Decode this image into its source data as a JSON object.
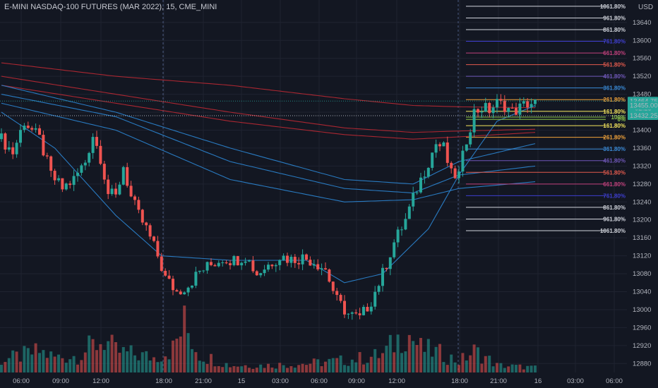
{
  "header": {
    "title": "E-MINI NASDAQ-100 FUTURES (MAR 2022), 15, CME_MINI",
    "currency": "USD"
  },
  "colors": {
    "background": "#131722",
    "up_candle": "#26a69a",
    "down_candle": "#ef5350",
    "grid": "#1f2330",
    "ma_red": "#b22833",
    "ma_blue": "#2a7fc9",
    "axis_text": "#b2b5be"
  },
  "price_tags": [
    {
      "value": "13464.75",
      "sub": "02:23",
      "color": "#26a69a"
    },
    {
      "value": "13455.00",
      "color": "#26a69a"
    },
    {
      "value": "13432.25",
      "color": "#26a69a"
    }
  ],
  "chart_data": {
    "type": "candlestick",
    "title": "E-MINI NASDAQ-100 FUTURES (MAR 2022), 15, CME_MINI",
    "interval": "15",
    "y_axis": {
      "unit": "USD",
      "ticks": [
        13640,
        13600,
        13560,
        13520,
        13480,
        13440,
        13400,
        13360,
        13320,
        13280,
        13240,
        13200,
        13160,
        13120,
        13080,
        13040,
        13000,
        12960,
        12920,
        12880
      ],
      "ylim": [
        12860,
        13690
      ]
    },
    "x_axis": {
      "ticks": [
        "06:00",
        "09:00",
        "12:00",
        "18:00",
        "21:00",
        "15",
        "03:00",
        "06:00",
        "09:00",
        "12:00",
        "18:00",
        "21:00",
        "16",
        "03:00",
        "06:00"
      ]
    },
    "price_path": [
      [
        0,
        13380
      ],
      [
        3,
        13350
      ],
      [
        6,
        13420
      ],
      [
        8,
        13400
      ],
      [
        10,
        13380
      ],
      [
        13,
        13300
      ],
      [
        16,
        13270
      ],
      [
        19,
        13290
      ],
      [
        22,
        13330
      ],
      [
        24,
        13390
      ],
      [
        26,
        13340
      ],
      [
        28,
        13260
      ],
      [
        30,
        13250
      ],
      [
        32,
        13320
      ],
      [
        34,
        13250
      ],
      [
        36,
        13210
      ],
      [
        38,
        13180
      ],
      [
        41,
        13120
      ],
      [
        43,
        13070
      ],
      [
        46,
        13040
      ],
      [
        49,
        13055
      ],
      [
        52,
        13085
      ],
      [
        55,
        13100
      ],
      [
        58,
        13115
      ],
      [
        61,
        13110
      ],
      [
        64,
        13120
      ],
      [
        67,
        13080
      ],
      [
        70,
        13100
      ],
      [
        73,
        13120
      ],
      [
        76,
        13112
      ],
      [
        79,
        13116
      ],
      [
        82,
        13108
      ],
      [
        85,
        13090
      ],
      [
        88,
        13020
      ],
      [
        91,
        12990
      ],
      [
        94,
        12980
      ],
      [
        97,
        13020
      ],
      [
        100,
        13080
      ],
      [
        103,
        13150
      ],
      [
        106,
        13200
      ],
      [
        109,
        13270
      ],
      [
        112,
        13330
      ],
      [
        114,
        13370
      ],
      [
        116,
        13360
      ],
      [
        118,
        13300
      ],
      [
        120,
        13300
      ],
      [
        122,
        13380
      ],
      [
        124,
        13440
      ],
      [
        126,
        13450
      ],
      [
        128,
        13445
      ],
      [
        130,
        13460
      ],
      [
        132,
        13455
      ],
      [
        134,
        13440
      ],
      [
        136,
        13450
      ],
      [
        138,
        13460
      ],
      [
        140,
        13460
      ]
    ],
    "moving_averages": [
      {
        "color": "#b22833",
        "values": [
          [
            0,
            13550
          ],
          [
            30,
            13520
          ],
          [
            60,
            13500
          ],
          [
            90,
            13470
          ],
          [
            108,
            13455
          ],
          [
            120,
            13452
          ],
          [
            140,
            13450
          ]
        ]
      },
      {
        "color": "#b22833",
        "values": [
          [
            0,
            13520
          ],
          [
            30,
            13480
          ],
          [
            60,
            13440
          ],
          [
            90,
            13405
          ],
          [
            108,
            13395
          ],
          [
            120,
            13398
          ],
          [
            140,
            13402
          ]
        ]
      },
      {
        "color": "#b22833",
        "values": [
          [
            0,
            13500
          ],
          [
            30,
            13460
          ],
          [
            60,
            13420
          ],
          [
            90,
            13390
          ],
          [
            108,
            13380
          ],
          [
            120,
            13385
          ],
          [
            140,
            13395
          ]
        ]
      },
      {
        "color": "#2a7fc9",
        "values": [
          [
            0,
            13500
          ],
          [
            30,
            13440
          ],
          [
            60,
            13360
          ],
          [
            90,
            13290
          ],
          [
            108,
            13280
          ],
          [
            120,
            13330
          ],
          [
            140,
            13370
          ]
        ]
      },
      {
        "color": "#2a7fc9",
        "values": [
          [
            0,
            13480
          ],
          [
            30,
            13430
          ],
          [
            60,
            13330
          ],
          [
            90,
            13270
          ],
          [
            108,
            13260
          ],
          [
            120,
            13300
          ],
          [
            140,
            13320
          ]
        ]
      },
      {
        "color": "#2a7fc9",
        "values": [
          [
            0,
            13460
          ],
          [
            30,
            13400
          ],
          [
            60,
            13290
          ],
          [
            90,
            13240
          ],
          [
            108,
            13245
          ],
          [
            120,
            13270
          ],
          [
            140,
            13285
          ]
        ]
      },
      {
        "color": "#2a7fc9",
        "values": [
          [
            0,
            13440
          ],
          [
            14,
            13360
          ],
          [
            30,
            13210
          ],
          [
            42,
            13120
          ],
          [
            60,
            13110
          ],
          [
            80,
            13110
          ],
          [
            90,
            13060
          ],
          [
            100,
            13080
          ],
          [
            112,
            13180
          ],
          [
            120,
            13300
          ],
          [
            130,
            13420
          ],
          [
            140,
            13455
          ]
        ]
      }
    ],
    "fibonacci": {
      "upper": [
        {
          "label": "1061.80%",
          "value": 13676,
          "color": "#d1d4dc"
        },
        {
          "label": "961.80%",
          "value": 13650,
          "color": "#d1d4dc"
        },
        {
          "label": "861.80%",
          "value": 13624,
          "color": "#d1d4dc"
        },
        {
          "label": "761.80%",
          "value": 13598,
          "color": "#3f3fd1"
        },
        {
          "label": "661.80%",
          "value": 13572,
          "color": "#c2417c"
        },
        {
          "label": "561.80%",
          "value": 13546,
          "color": "#e25a4d"
        },
        {
          "label": "461.80%",
          "value": 13520,
          "color": "#6f57b8"
        },
        {
          "label": "361.80%",
          "value": 13494,
          "color": "#3a8bd8"
        },
        {
          "label": "261.80%",
          "value": 13468,
          "color": "#f2a33a"
        },
        {
          "label": "161.80%",
          "value": 13442,
          "color": "#f5e55c"
        },
        {
          "label": "100%",
          "value": 13429,
          "color": "#8bc34a"
        },
        {
          "label": "0%",
          "value": 13424,
          "color": "#8bc34a"
        }
      ],
      "lower": [
        {
          "label": "161.80%",
          "value": 13410,
          "color": "#f5e55c"
        },
        {
          "label": "261.80%",
          "value": 13384,
          "color": "#f2a33a"
        },
        {
          "label": "361.80%",
          "value": 13358,
          "color": "#3a8bd8"
        },
        {
          "label": "461.80%",
          "value": 13332,
          "color": "#6f57b8"
        },
        {
          "label": "561.80%",
          "value": 13306,
          "color": "#e25a4d"
        },
        {
          "label": "661.80%",
          "value": 13280,
          "color": "#c2417c"
        },
        {
          "label": "761.80%",
          "value": 13254,
          "color": "#3f3fd1"
        },
        {
          "label": "861.80%",
          "value": 13228,
          "color": "#d1d4dc"
        },
        {
          "label": "961.80%",
          "value": 13202,
          "color": "#d1d4dc"
        },
        {
          "label": "1061.80%",
          "value": 13176,
          "color": "#d1d4dc"
        }
      ]
    },
    "volume_path": [
      [
        0,
        20
      ],
      [
        10,
        35
      ],
      [
        14,
        25
      ],
      [
        20,
        28
      ],
      [
        24,
        45
      ],
      [
        27,
        55
      ],
      [
        30,
        35
      ],
      [
        40,
        25
      ],
      [
        45,
        40
      ],
      [
        48,
        80
      ],
      [
        52,
        30
      ],
      [
        60,
        12
      ],
      [
        70,
        12
      ],
      [
        80,
        15
      ],
      [
        90,
        20
      ],
      [
        96,
        25
      ],
      [
        100,
        30
      ],
      [
        104,
        55
      ],
      [
        106,
        70
      ],
      [
        110,
        40
      ],
      [
        116,
        30
      ],
      [
        120,
        18
      ],
      [
        124,
        35
      ],
      [
        126,
        30
      ],
      [
        130,
        12
      ],
      [
        140,
        8
      ]
    ],
    "grid": true,
    "legend": "none"
  }
}
